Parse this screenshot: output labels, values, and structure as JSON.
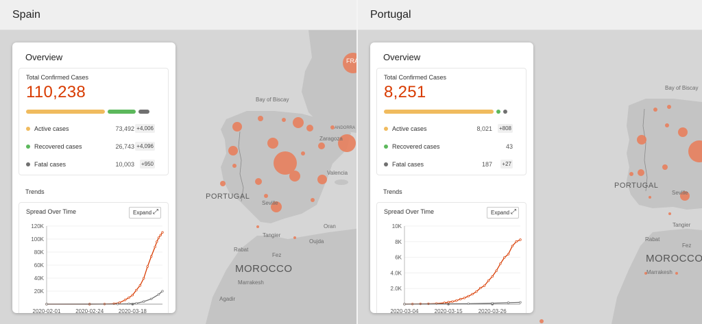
{
  "panels": [
    {
      "title": "Spain",
      "overview_title": "Overview",
      "total_label": "Total Confirmed Cases",
      "total_value": "110,238",
      "stats": [
        {
          "label": "Active cases",
          "value": "73,492",
          "delta": "+4,006",
          "color": "#f0bb5e"
        },
        {
          "label": "Recovered cases",
          "value": "26,743",
          "delta": "+4,096",
          "color": "#5cb85c"
        },
        {
          "label": "Fatal cases",
          "value": "10,003",
          "delta": "+950",
          "color": "#707070"
        }
      ],
      "bar_fractions": {
        "active": 0.667,
        "recovered": 0.243,
        "fatal": 0.091
      },
      "trends_label": "Trends",
      "spread_title": "Spread Over Time",
      "expand_label": "Expand",
      "expand_icon": "expand-arrows-icon",
      "map_labels": {
        "bay": "Bay of Biscay",
        "portugal": "PORTUGAL",
        "morocco": "MOROCCO",
        "zaragoza": "Zaragoza",
        "valencia": "Valencia",
        "seville": "Seville",
        "tangier": "Tangier",
        "oran": "Oran",
        "oujda": "Oujda",
        "rabat": "Rabat",
        "fez": "Fez",
        "marrakesh": "Marrakesh",
        "agadir": "Agadir",
        "andorra": "ANDORRA",
        "france": "FRA"
      },
      "chart_data": {
        "type": "line",
        "title": "Spread Over Time",
        "x_ticks": [
          "2020-02-01",
          "2020-02-24",
          "2020-03-18"
        ],
        "y_ticks": [
          "20K",
          "40K",
          "60K",
          "80K",
          "100K",
          "120K"
        ],
        "ylim": [
          0,
          120000
        ],
        "series": [
          {
            "color": "#d83b01",
            "x": [
              "2020-02-01",
              "2020-02-24",
              "2020-03-03",
              "2020-03-08",
              "2020-03-11",
              "2020-03-14",
              "2020-03-16",
              "2020-03-18",
              "2020-03-20",
              "2020-03-22",
              "2020-03-24",
              "2020-03-26",
              "2020-03-28",
              "2020-03-30",
              "2020-03-31",
              "2020-04-01",
              "2020-04-02",
              "2020-04-03"
            ],
            "values": [
              0,
              2,
              150,
              600,
              2200,
              6400,
              9900,
              13900,
              21500,
              28600,
              39700,
              57800,
              73200,
              87900,
              95900,
              102100,
              106000,
              110238
            ]
          },
          {
            "color": "#707070",
            "x": [
              "2020-02-01",
              "2020-03-10",
              "2020-03-16",
              "2020-03-20",
              "2020-03-24",
              "2020-03-28",
              "2020-04-01",
              "2020-04-03"
            ],
            "values": [
              0,
              100,
              500,
              1200,
              4000,
              8000,
              15000,
              20000
            ]
          }
        ]
      }
    },
    {
      "title": "Portugal",
      "overview_title": "Overview",
      "total_label": "Total Confirmed Cases",
      "total_value": "8,251",
      "stats": [
        {
          "label": "Active cases",
          "value": "8,021",
          "delta": "+808",
          "color": "#f0bb5e"
        },
        {
          "label": "Recovered cases",
          "value": "43",
          "delta": "",
          "color": "#5cb85c"
        },
        {
          "label": "Fatal cases",
          "value": "187",
          "delta": "+27",
          "color": "#707070"
        }
      ],
      "bar_fractions": {
        "active": 0.972,
        "recovered": 0.005,
        "fatal": 0.023
      },
      "trends_label": "Trends",
      "spread_title": "Spread Over Time",
      "expand_label": "Expand",
      "expand_icon": "expand-arrows-icon",
      "map_labels": {
        "bay": "Bay of Biscay",
        "portugal": "PORTUGAL",
        "morocco": "MOROCCO",
        "seville": "Seville",
        "tangier": "Tangier",
        "rabat": "Rabat",
        "fez": "Fez",
        "marrakesh": "Marrakesh"
      },
      "chart_data": {
        "type": "line",
        "title": "Spread Over Time",
        "x_ticks": [
          "2020-03-04",
          "2020-03-15",
          "2020-03-26"
        ],
        "y_ticks": [
          "2.0K",
          "4.0K",
          "6K",
          "8K",
          "10K"
        ],
        "ylim": [
          0,
          10000
        ],
        "series": [
          {
            "color": "#d83b01",
            "x": [
              "2020-03-04",
              "2020-03-06",
              "2020-03-08",
              "2020-03-10",
              "2020-03-12",
              "2020-03-14",
              "2020-03-15",
              "2020-03-16",
              "2020-03-17",
              "2020-03-18",
              "2020-03-19",
              "2020-03-20",
              "2020-03-21",
              "2020-03-22",
              "2020-03-23",
              "2020-03-24",
              "2020-03-25",
              "2020-03-26",
              "2020-03-27",
              "2020-03-28",
              "2020-03-29",
              "2020-03-30",
              "2020-03-31",
              "2020-04-01",
              "2020-04-02"
            ],
            "values": [
              0,
              10,
              30,
              40,
              80,
              170,
              250,
              330,
              450,
              640,
              790,
              1020,
              1280,
              1600,
              2060,
              2360,
              2990,
              3540,
              4270,
              5170,
              5960,
              6400,
              7440,
              8010,
              8251
            ]
          },
          {
            "color": "#707070",
            "x": [
              "2020-03-04",
              "2020-03-20",
              "2020-03-26",
              "2020-03-30",
              "2020-04-02"
            ],
            "values": [
              0,
              50,
              120,
              180,
              230
            ]
          }
        ]
      }
    }
  ],
  "colors": {
    "accent": "#d83b01",
    "active": "#f0bb5e",
    "recovered": "#5cb85c",
    "fatal": "#707070",
    "bubble": "#e8805d"
  }
}
